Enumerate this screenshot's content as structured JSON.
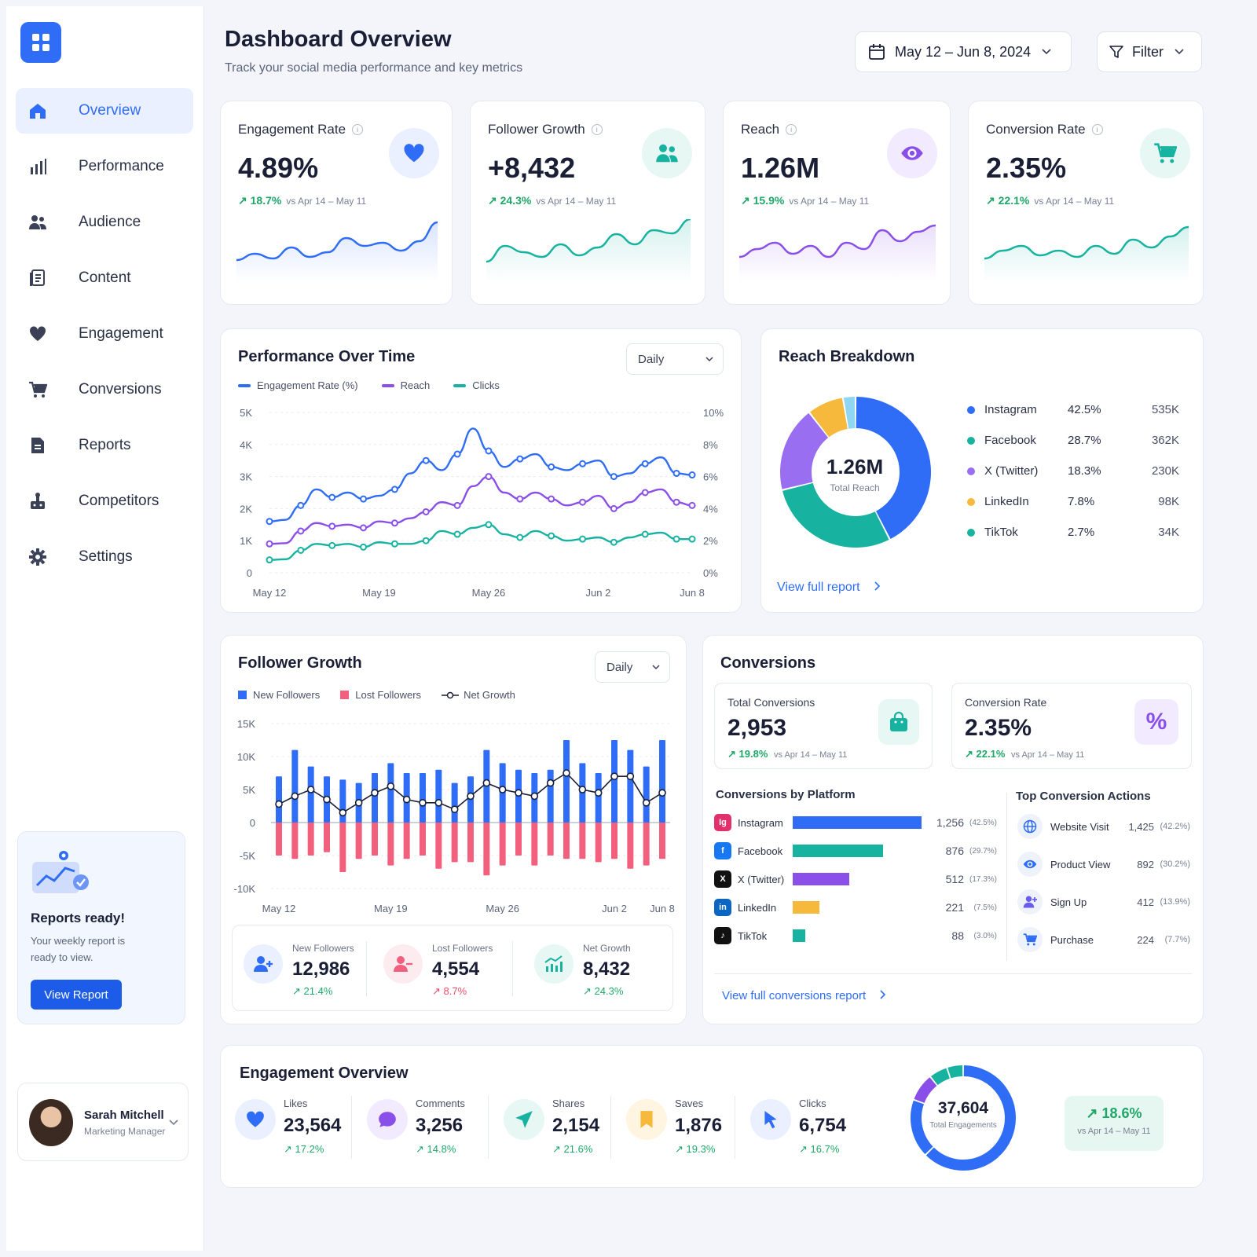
{
  "sidebar": {
    "items": [
      {
        "label": "Overview",
        "icon": "home-icon"
      },
      {
        "label": "Performance",
        "icon": "bar-chart-icon"
      },
      {
        "label": "Audience",
        "icon": "users-icon"
      },
      {
        "label": "Content",
        "icon": "document-icon"
      },
      {
        "label": "Engagement",
        "icon": "heart-icon"
      },
      {
        "label": "Conversions",
        "icon": "cart-icon"
      },
      {
        "label": "Reports",
        "icon": "report-icon"
      },
      {
        "label": "Competitors",
        "icon": "trophy-icon"
      },
      {
        "label": "Settings",
        "icon": "gear-icon"
      }
    ],
    "promo": {
      "title": "Reports ready!",
      "text": "Your weekly report is ready to view.",
      "button": "View Report"
    },
    "user": {
      "name": "Sarah Mitchell",
      "role": "Marketing Manager"
    }
  },
  "header": {
    "title": "Dashboard Overview",
    "subtitle": "Track your social media performance and key metrics",
    "date_range": "May 12 – Jun 8, 2024",
    "filter": "Filter"
  },
  "kpis": [
    {
      "title": "Engagement Rate",
      "value": "4.89%",
      "change": "18.7%",
      "compare": "vs Apr 14 – May 11",
      "color": "#2f6df6",
      "icon": "heart-icon",
      "spark": [
        22,
        30,
        24,
        38,
        26,
        32,
        50,
        40,
        44,
        34,
        46,
        70
      ]
    },
    {
      "title": "Follower Growth",
      "value": "+8,432",
      "change": "24.3%",
      "compare": "vs Apr 14 – May 11",
      "color": "#18b3a0",
      "icon": "users-icon",
      "spark": [
        20,
        40,
        32,
        26,
        42,
        28,
        38,
        55,
        42,
        60,
        56,
        74
      ]
    },
    {
      "title": "Reach",
      "value": "1.26M",
      "change": "15.9%",
      "compare": "vs Apr 14 – May 11",
      "color": "#8a4fe8",
      "icon": "eye-icon",
      "spark": [
        26,
        36,
        44,
        30,
        40,
        26,
        44,
        36,
        60,
        46,
        58,
        66
      ]
    },
    {
      "title": "Conversion Rate",
      "value": "2.35%",
      "change": "22.1%",
      "compare": "vs Apr 14 – May 11",
      "color": "#18b3a0",
      "icon": "cart-icon",
      "spark": [
        24,
        34,
        40,
        28,
        34,
        26,
        40,
        30,
        48,
        38,
        52,
        64
      ]
    }
  ],
  "performance": {
    "title": "Performance Over Time",
    "select": "Daily",
    "legend": [
      "Engagement Rate (%)",
      "Reach",
      "Clicks"
    ]
  },
  "reach": {
    "title": "Reach Breakdown",
    "center_value": "1.26M",
    "center_label": "Total Reach",
    "link": "View full report",
    "rows": [
      {
        "name": "Instagram",
        "pct": "42.5%",
        "val": "535K",
        "color": "#2f6df6"
      },
      {
        "name": "Facebook",
        "pct": "28.7%",
        "val": "362K",
        "color": "#18b3a0"
      },
      {
        "name": "X (Twitter)",
        "pct": "18.3%",
        "val": "230K",
        "color": "#9a6ef0"
      },
      {
        "name": "LinkedIn",
        "pct": "7.8%",
        "val": "98K",
        "color": "#f6b93b"
      },
      {
        "name": "TikTok",
        "pct": "2.7%",
        "val": "34K",
        "color": "#18b3a0"
      }
    ]
  },
  "follower": {
    "title": "Follower Growth",
    "select": "Daily",
    "legend": [
      "New Followers",
      "Lost Followers",
      "Net Growth"
    ],
    "stats": [
      {
        "label": "New Followers",
        "value": "12,986",
        "change": "21.4%"
      },
      {
        "label": "Lost Followers",
        "value": "4,554",
        "change": "8.7%"
      },
      {
        "label": "Net Growth",
        "value": "8,432",
        "change": "24.3%"
      }
    ]
  },
  "conversions": {
    "title": "Conversions",
    "total": {
      "label": "Total Conversions",
      "value": "2,953",
      "change": "19.8%",
      "compare": "vs Apr 14 – May 11"
    },
    "rate": {
      "label": "Conversion Rate",
      "value": "2.35%",
      "change": "22.1%",
      "compare": "vs Apr 14 – May 11",
      "symbol": "%"
    },
    "by_platform_title": "Conversions by Platform",
    "platforms": [
      {
        "name": "Instagram",
        "value": "1,256",
        "pct": "(42.5%)",
        "fraction": 1.0,
        "color": "#2f6df6"
      },
      {
        "name": "Facebook",
        "value": "876",
        "pct": "(29.7%)",
        "fraction": 0.7,
        "color": "#18b3a0"
      },
      {
        "name": "X (Twitter)",
        "value": "512",
        "pct": "(17.3%)",
        "fraction": 0.44,
        "color": "#8a4fe8"
      },
      {
        "name": "LinkedIn",
        "value": "221",
        "pct": "(7.5%)",
        "fraction": 0.21,
        "color": "#f6b93b"
      },
      {
        "name": "TikTok",
        "value": "88",
        "pct": "(3.0%)",
        "fraction": 0.1,
        "color": "#18b3a0"
      }
    ],
    "actions_title": "Top Conversion Actions",
    "actions": [
      {
        "name": "Website Visit",
        "value": "1,425",
        "pct": "(42.2%)",
        "icon": "globe-icon"
      },
      {
        "name": "Product View",
        "value": "892",
        "pct": "(30.2%)",
        "icon": "eye-icon"
      },
      {
        "name": "Sign Up",
        "value": "412",
        "pct": "(13.9%)",
        "icon": "user-plus-icon"
      },
      {
        "name": "Purchase",
        "value": "224",
        "pct": "(7.7%)",
        "icon": "cart-icon"
      }
    ],
    "link": "View full conversions report"
  },
  "engagement": {
    "title": "Engagement Overview",
    "items": [
      {
        "label": "Likes",
        "value": "23,564",
        "change": "17.2%",
        "icon": "heart-icon",
        "color": "#2f6df6",
        "bg": "#eaf0ff"
      },
      {
        "label": "Comments",
        "value": "3,256",
        "change": "14.8%",
        "icon": "chat-icon",
        "color": "#8a4fe8",
        "bg": "#f2ebff"
      },
      {
        "label": "Shares",
        "value": "2,154",
        "change": "21.6%",
        "icon": "send-icon",
        "color": "#18b3a0",
        "bg": "#e6f7f4"
      },
      {
        "label": "Saves",
        "value": "1,876",
        "change": "19.3%",
        "icon": "bookmark-icon",
        "color": "#f6b93b",
        "bg": "#fff5e0"
      },
      {
        "label": "Clicks",
        "value": "6,754",
        "change": "16.7%",
        "icon": "cursor-icon",
        "color": "#2f6df6",
        "bg": "#eaf0ff"
      }
    ],
    "total": "37,604",
    "total_label": "Total Engagements",
    "badge_change": "18.6%",
    "badge_compare": "vs Apr 14 – May 11"
  },
  "chart_data": [
    {
      "type": "line",
      "title": "Performance Over Time",
      "x": [
        "May 12",
        "May 13",
        "May 14",
        "May 15",
        "May 16",
        "May 17",
        "May 18",
        "May 19",
        "May 20",
        "May 21",
        "May 22",
        "May 23",
        "May 24",
        "May 25",
        "May 26",
        "May 27",
        "May 28",
        "May 29",
        "May 30",
        "May 31",
        "Jun 1",
        "Jun 2",
        "Jun 3",
        "Jun 4",
        "Jun 5",
        "Jun 6",
        "Jun 7",
        "Jun 8"
      ],
      "x_ticks": [
        "May 12",
        "May 19",
        "May 26",
        "Jun 2",
        "Jun 8"
      ],
      "yticks_left": [
        "5K",
        "4K",
        "3K",
        "2K",
        "1K",
        "0"
      ],
      "yticks_right": [
        "10%",
        "8%",
        "6%",
        "4%",
        "2%",
        "0%"
      ],
      "ylim": [
        0,
        5000
      ],
      "series": [
        {
          "name": "Engagement Rate (%)",
          "color": "#2f6df6",
          "values": [
            1600,
            1650,
            2100,
            2600,
            2350,
            2500,
            2300,
            2400,
            2600,
            3100,
            3500,
            3200,
            3700,
            4500,
            3800,
            3300,
            3550,
            3700,
            3300,
            3200,
            3400,
            3500,
            3000,
            3100,
            3400,
            3600,
            3100,
            3050
          ]
        },
        {
          "name": "Reach",
          "color": "#8a4fe8",
          "values": [
            900,
            920,
            1300,
            1550,
            1450,
            1500,
            1400,
            1600,
            1550,
            1700,
            1900,
            2200,
            2100,
            2700,
            3000,
            2500,
            2300,
            2500,
            2300,
            2100,
            2200,
            2400,
            2000,
            2200,
            2500,
            2600,
            2200,
            2100
          ]
        },
        {
          "name": "Clicks",
          "color": "#18b3a0",
          "values": [
            400,
            420,
            700,
            900,
            850,
            900,
            800,
            950,
            900,
            900,
            1000,
            1300,
            1200,
            1400,
            1500,
            1200,
            1100,
            1300,
            1150,
            1000,
            1050,
            1100,
            950,
            1100,
            1200,
            1250,
            1050,
            1050
          ]
        }
      ]
    },
    {
      "type": "pie",
      "title": "Reach Breakdown",
      "categories": [
        "Instagram",
        "Facebook",
        "X (Twitter)",
        "LinkedIn",
        "TikTok"
      ],
      "values": [
        42.5,
        28.7,
        18.3,
        7.8,
        2.7
      ]
    },
    {
      "type": "bar",
      "title": "Follower Growth",
      "x_ticks": [
        "May 12",
        "May 19",
        "May 26",
        "Jun 2",
        "Jun 8"
      ],
      "yticks": [
        "15K",
        "10K",
        "5K",
        "0",
        "-5K",
        "-10K"
      ],
      "ylim": [
        -10000,
        15000
      ],
      "series": [
        {
          "name": "New Followers",
          "color": "#2f6df6",
          "values": [
            7000,
            11000,
            8500,
            7000,
            6500,
            6000,
            7500,
            9000,
            7500,
            7500,
            8000,
            6000,
            7000,
            11000,
            9000,
            8000,
            7500,
            8000,
            12500,
            9000,
            7500,
            12500,
            11000,
            8500,
            12500
          ]
        },
        {
          "name": "Lost Followers",
          "color": "#f2607e",
          "values": [
            -5000,
            -5500,
            -5000,
            -4500,
            -7500,
            -5500,
            -5000,
            -6500,
            -5500,
            -5000,
            -7000,
            -6000,
            -6000,
            -8000,
            -6500,
            -5000,
            -6500,
            -5000,
            -5500,
            -5500,
            -6000,
            -5500,
            -7000,
            -6500,
            -5500
          ]
        },
        {
          "name": "Net Growth",
          "color": "#1a1f36",
          "values": [
            2800,
            4000,
            5000,
            3500,
            1500,
            3000,
            4500,
            5500,
            3500,
            3000,
            3000,
            2000,
            4000,
            6000,
            5000,
            4500,
            4000,
            6000,
            7500,
            5000,
            4500,
            7000,
            7000,
            3000,
            4500
          ]
        }
      ]
    },
    {
      "type": "pie",
      "title": "Engagement Overview",
      "categories": [
        "Likes",
        "Comments",
        "Shares",
        "Saves",
        "Clicks"
      ],
      "values": [
        23564,
        3256,
        2154,
        1876,
        6754
      ]
    }
  ]
}
